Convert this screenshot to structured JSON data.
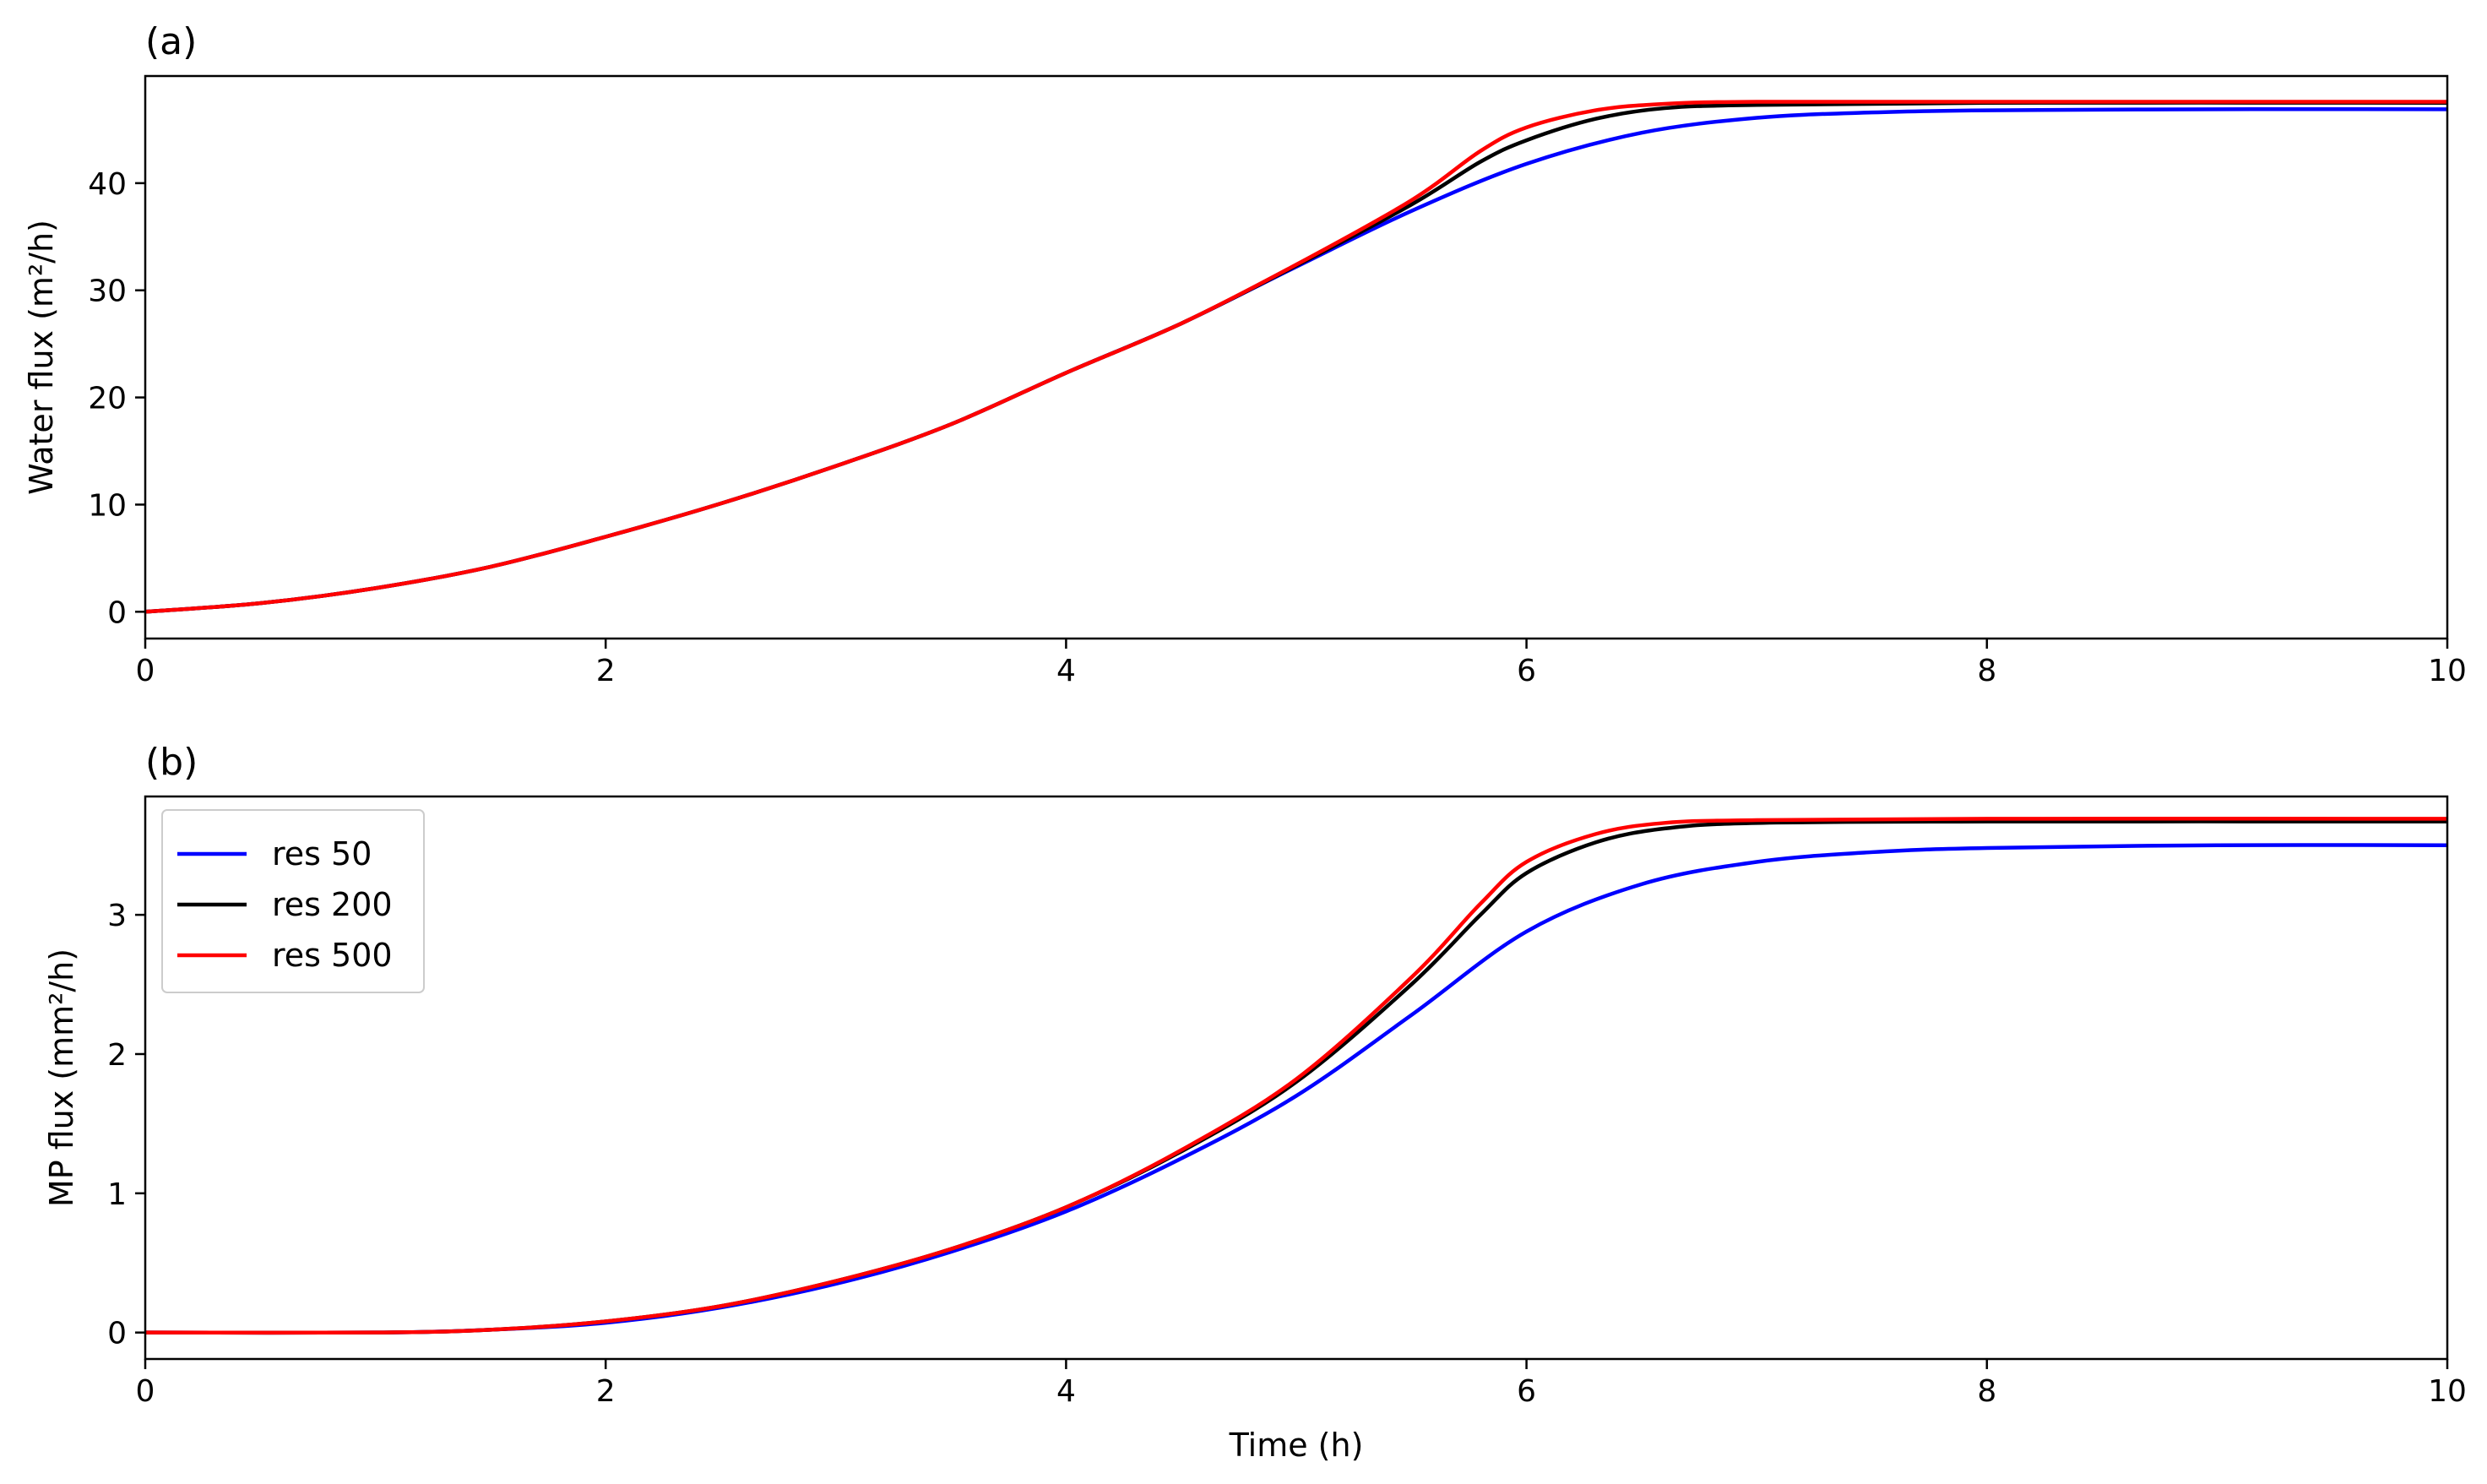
{
  "chart_data": [
    {
      "type": "line",
      "panel_label": "(a)",
      "xlabel": "",
      "ylabel": "Water flux (m²/h)",
      "xlim": [
        0,
        10
      ],
      "ylim": [
        -2.5,
        50
      ],
      "x_ticks": [
        0,
        2,
        4,
        6,
        8,
        10
      ],
      "y_ticks": [
        0,
        10,
        20,
        30,
        40
      ],
      "grid": false,
      "legend": null,
      "series": [
        {
          "name": "res 50",
          "color": "#0000ff",
          "points": [
            [
              0,
              0
            ],
            [
              0.5,
              0.8
            ],
            [
              1,
              2.2
            ],
            [
              1.5,
              4.2
            ],
            [
              2,
              7.0
            ],
            [
              2.5,
              10.1
            ],
            [
              3,
              13.6
            ],
            [
              3.5,
              17.5
            ],
            [
              4,
              22.3
            ],
            [
              4.5,
              26.9
            ],
            [
              5,
              32.2
            ],
            [
              5.5,
              37.4
            ],
            [
              6,
              41.8
            ],
            [
              6.5,
              44.7
            ],
            [
              7,
              46.1
            ],
            [
              7.5,
              46.6
            ],
            [
              8,
              46.8
            ],
            [
              9,
              46.9
            ],
            [
              10,
              46.9
            ]
          ]
        },
        {
          "name": "res 200",
          "color": "#000000",
          "points": [
            [
              0,
              0
            ],
            [
              0.5,
              0.8
            ],
            [
              1,
              2.2
            ],
            [
              1.5,
              4.2
            ],
            [
              2,
              7.0
            ],
            [
              2.5,
              10.1
            ],
            [
              3,
              13.6
            ],
            [
              3.5,
              17.5
            ],
            [
              4,
              22.3
            ],
            [
              4.5,
              26.9
            ],
            [
              5,
              32.3
            ],
            [
              5.5,
              38.0
            ],
            [
              5.8,
              42.0
            ],
            [
              6,
              44.0
            ],
            [
              6.3,
              46.0
            ],
            [
              6.6,
              47.0
            ],
            [
              7,
              47.3
            ],
            [
              8,
              47.5
            ],
            [
              10,
              47.5
            ]
          ]
        },
        {
          "name": "res 500",
          "color": "#ff0000",
          "points": [
            [
              0,
              0
            ],
            [
              0.5,
              0.8
            ],
            [
              1,
              2.2
            ],
            [
              1.5,
              4.2
            ],
            [
              2,
              7.0
            ],
            [
              2.5,
              10.1
            ],
            [
              3,
              13.6
            ],
            [
              3.5,
              17.5
            ],
            [
              4,
              22.3
            ],
            [
              4.5,
              26.9
            ],
            [
              5,
              32.4
            ],
            [
              5.5,
              38.4
            ],
            [
              5.8,
              43.0
            ],
            [
              6,
              45.2
            ],
            [
              6.3,
              46.8
            ],
            [
              6.6,
              47.4
            ],
            [
              7,
              47.6
            ],
            [
              8,
              47.6
            ],
            [
              10,
              47.6
            ]
          ]
        }
      ]
    },
    {
      "type": "line",
      "panel_label": "(b)",
      "xlabel": "Time (h)",
      "ylabel": "MP flux (mm²/h)",
      "xlim": [
        0,
        10
      ],
      "ylim": [
        -0.19,
        3.85
      ],
      "x_ticks": [
        0,
        2,
        4,
        6,
        8,
        10
      ],
      "y_ticks": [
        0,
        1,
        2,
        3
      ],
      "grid": false,
      "legend": {
        "position": "top-left",
        "entries": [
          "res 50",
          "res 200",
          "res 500"
        ]
      },
      "series": [
        {
          "name": "res 50",
          "color": "#0000ff",
          "points": [
            [
              0,
              0
            ],
            [
              1,
              0.0
            ],
            [
              1.5,
              0.02
            ],
            [
              2,
              0.07
            ],
            [
              2.5,
              0.18
            ],
            [
              3,
              0.35
            ],
            [
              3.5,
              0.58
            ],
            [
              4,
              0.87
            ],
            [
              4.5,
              1.25
            ],
            [
              5,
              1.7
            ],
            [
              5.5,
              2.28
            ],
            [
              6,
              2.88
            ],
            [
              6.5,
              3.22
            ],
            [
              7,
              3.38
            ],
            [
              7.5,
              3.45
            ],
            [
              8,
              3.48
            ],
            [
              9,
              3.5
            ],
            [
              10,
              3.5
            ]
          ]
        },
        {
          "name": "res 200",
          "color": "#000000",
          "points": [
            [
              0,
              0
            ],
            [
              1,
              0.0
            ],
            [
              1.5,
              0.02
            ],
            [
              2,
              0.08
            ],
            [
              2.5,
              0.19
            ],
            [
              3,
              0.37
            ],
            [
              3.5,
              0.6
            ],
            [
              4,
              0.9
            ],
            [
              4.5,
              1.3
            ],
            [
              5,
              1.8
            ],
            [
              5.5,
              2.5
            ],
            [
              5.8,
              3.0
            ],
            [
              6,
              3.3
            ],
            [
              6.3,
              3.52
            ],
            [
              6.6,
              3.62
            ],
            [
              7,
              3.66
            ],
            [
              8,
              3.67
            ],
            [
              10,
              3.67
            ]
          ]
        },
        {
          "name": "res 500",
          "color": "#ff0000",
          "points": [
            [
              0,
              0
            ],
            [
              1,
              0.0
            ],
            [
              1.5,
              0.02
            ],
            [
              2,
              0.08
            ],
            [
              2.5,
              0.19
            ],
            [
              3,
              0.37
            ],
            [
              3.5,
              0.6
            ],
            [
              4,
              0.9
            ],
            [
              4.5,
              1.31
            ],
            [
              5,
              1.82
            ],
            [
              5.5,
              2.55
            ],
            [
              5.8,
              3.08
            ],
            [
              6,
              3.38
            ],
            [
              6.3,
              3.58
            ],
            [
              6.6,
              3.66
            ],
            [
              7,
              3.68
            ],
            [
              8,
              3.69
            ],
            [
              10,
              3.69
            ]
          ]
        }
      ]
    }
  ]
}
